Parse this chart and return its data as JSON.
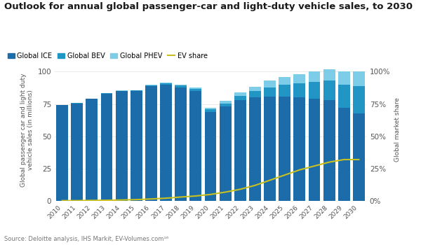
{
  "title": "Outlook for annual global passenger-car and light-duty vehicle sales, to 2030",
  "source": "Source: Deloitte analysis, IHS Markit, EV-Volumes.com¹⁶",
  "ylabel_left": "Global passenger car and light duty\nvehicle sales (in millions)",
  "ylabel_right": "Global market share",
  "years": [
    2010,
    2011,
    2012,
    2013,
    2014,
    2015,
    2016,
    2017,
    2018,
    2019,
    2020,
    2021,
    2022,
    2023,
    2024,
    2025,
    2026,
    2027,
    2028,
    2029,
    2030
  ],
  "ice": [
    74.0,
    75.5,
    79.0,
    83.0,
    85.0,
    85.0,
    89.0,
    90.0,
    88.0,
    85.0,
    69.0,
    73.0,
    78.0,
    80.0,
    81.0,
    81.0,
    80.0,
    79.0,
    78.0,
    72.0,
    68.0
  ],
  "bev": [
    0.1,
    0.1,
    0.2,
    0.2,
    0.3,
    0.4,
    0.6,
    0.8,
    1.2,
    1.5,
    1.8,
    2.5,
    3.5,
    5.0,
    7.0,
    9.0,
    11.0,
    13.0,
    15.0,
    18.0,
    21.0
  ],
  "phev": [
    0.05,
    0.05,
    0.1,
    0.15,
    0.2,
    0.35,
    0.5,
    0.9,
    1.0,
    1.2,
    1.5,
    2.0,
    2.5,
    3.5,
    5.0,
    6.0,
    7.0,
    8.0,
    9.0,
    10.0,
    11.0
  ],
  "ev_share": [
    0.2,
    0.2,
    0.4,
    0.5,
    0.7,
    1.0,
    1.5,
    2.1,
    3.0,
    3.8,
    5.0,
    6.8,
    9.0,
    12.0,
    16.0,
    20.0,
    24.0,
    27.0,
    30.0,
    32.0,
    32.0
  ],
  "color_ice": "#1b6ca8",
  "color_bev": "#2196c4",
  "color_phev": "#7dcde8",
  "color_ev_share": "#c8c020",
  "background_color": "#ffffff",
  "ylim_left": [
    0,
    110
  ],
  "ylim_right": [
    0,
    110
  ],
  "yticks_left": [
    0,
    25,
    50,
    75,
    100
  ],
  "yticks_right": [
    0,
    25,
    50,
    75,
    100
  ],
  "ytick_labels_right": [
    "0%",
    "25%",
    "50%",
    "75%",
    "100%"
  ]
}
